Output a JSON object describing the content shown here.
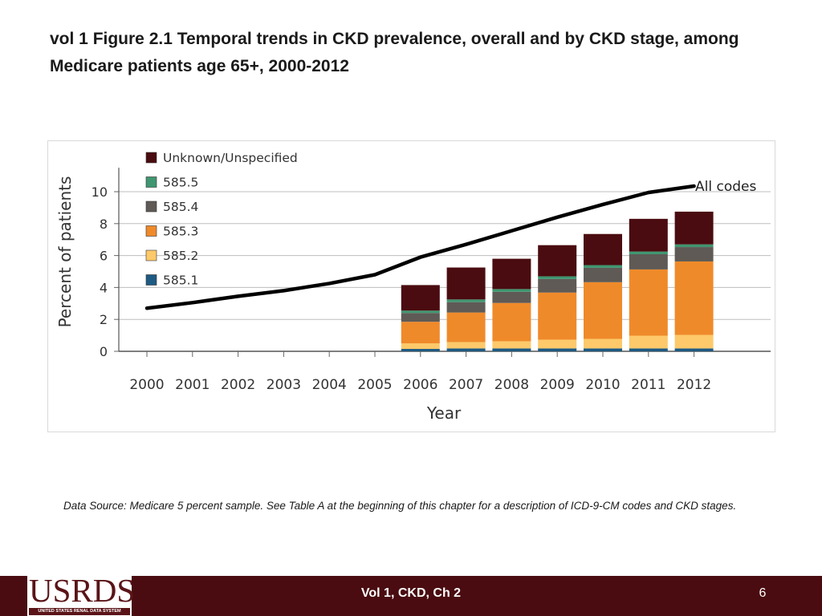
{
  "slide": {
    "title": "vol 1 Figure 2.1 Temporal trends in CKD prevalence, overall and by CKD stage, among Medicare patients age 65+, 2000-2012",
    "data_source": "Data Source: Medicare 5 percent sample. See Table A at the beginning of this chapter for a description of ICD-9-CM codes and CKD stages.",
    "footer_label": "Vol 1, CKD, Ch 2",
    "page_number": "6",
    "logo_text": "USRDS",
    "logo_subtext": "UNITED STATES RENAL DATA SYSTEM"
  },
  "colors": {
    "unknown": "#4a0c10",
    "s5": "#3f9670",
    "s4": "#5f5a55",
    "s3": "#ef8a2a",
    "s2": "#fdc96a",
    "s1": "#1e5a82",
    "line": "#000000",
    "grid": "#bdbdbd",
    "footer": "#4a0c10"
  },
  "chart_data": {
    "type": "bar",
    "title": "",
    "xlabel": "Year",
    "ylabel": "Percent of patients",
    "ylim": [
      0,
      11
    ],
    "yticks": [
      0,
      2,
      4,
      6,
      8,
      10
    ],
    "categories": [
      "2000",
      "2001",
      "2002",
      "2003",
      "2004",
      "2005",
      "2006",
      "2007",
      "2008",
      "2009",
      "2010",
      "2011",
      "2012"
    ],
    "stacked_series": [
      {
        "name": "585.1",
        "color_key": "s1",
        "values": [
          null,
          null,
          null,
          null,
          null,
          null,
          0.15,
          0.18,
          0.18,
          0.18,
          0.18,
          0.18,
          0.18
        ]
      },
      {
        "name": "585.2",
        "color_key": "s2",
        "values": [
          null,
          null,
          null,
          null,
          null,
          null,
          0.35,
          0.4,
          0.45,
          0.55,
          0.6,
          0.8,
          0.85
        ]
      },
      {
        "name": "585.3",
        "color_key": "s3",
        "values": [
          null,
          null,
          null,
          null,
          null,
          null,
          1.35,
          1.85,
          2.4,
          2.95,
          3.55,
          4.15,
          4.6
        ]
      },
      {
        "name": "585.4",
        "color_key": "s4",
        "values": [
          null,
          null,
          null,
          null,
          null,
          null,
          0.55,
          0.65,
          0.7,
          0.85,
          0.9,
          0.95,
          0.9
        ]
      },
      {
        "name": "585.5",
        "color_key": "s5",
        "values": [
          null,
          null,
          null,
          null,
          null,
          null,
          0.15,
          0.17,
          0.17,
          0.17,
          0.17,
          0.17,
          0.17
        ]
      },
      {
        "name": "Unknown/Unspecified",
        "color_key": "unknown",
        "values": [
          null,
          null,
          null,
          null,
          null,
          null,
          1.6,
          2.0,
          1.9,
          1.95,
          1.95,
          2.05,
          2.05
        ]
      }
    ],
    "line_series": {
      "name": "All codes",
      "values": [
        2.7,
        3.05,
        3.45,
        3.8,
        4.25,
        4.8,
        5.9,
        6.7,
        7.55,
        8.4,
        9.2,
        9.95,
        10.35
      ]
    },
    "legend": [
      "Unknown/Unspecified",
      "585.5",
      "585.4",
      "585.3",
      "585.2",
      "585.1"
    ],
    "legend_placement": "top-left"
  }
}
